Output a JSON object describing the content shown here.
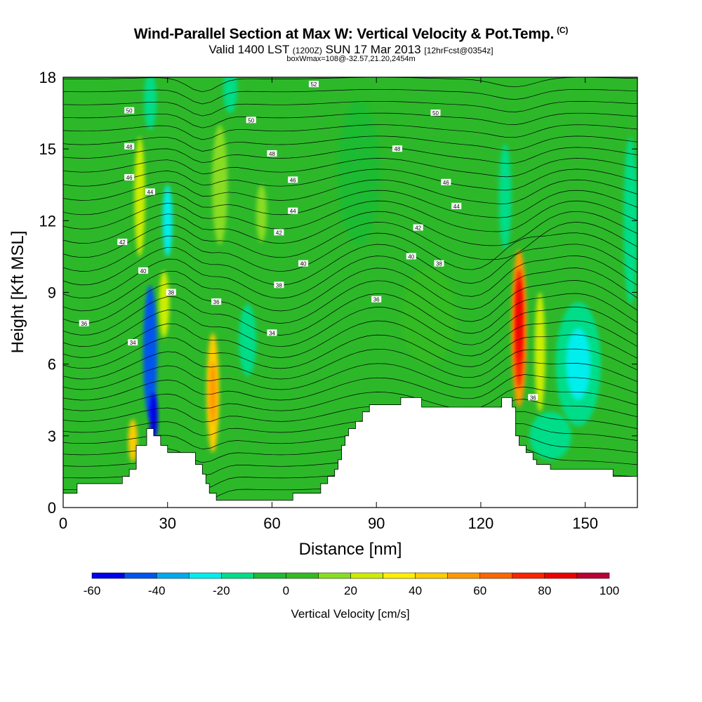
{
  "title": {
    "main": "Wind-Parallel Section at Max W: Vertical Velocity & Pot.Temp.",
    "copyright": "(C)",
    "sub_a": "Valid 1400 LST",
    "sub_b": "(1200Z)",
    "sub_c": "SUN 17 Mar 2013",
    "sub_d": "[12hrFcst@0354z]",
    "box": "boxWmax=108@-32.57,21.20,2454m"
  },
  "chart_data": {
    "type": "heatmap",
    "xlabel": "Distance [nm]",
    "ylabel": "Height [Kft MSL]",
    "xlim": [
      0,
      165
    ],
    "ylim": [
      0,
      18
    ],
    "x_ticks": [
      0,
      30,
      60,
      90,
      120,
      150
    ],
    "y_ticks": [
      0,
      3,
      6,
      9,
      12,
      15,
      18
    ],
    "background_level_color": "#2db82a",
    "colorbar": {
      "title": "Vertical Velocity [cm/s]",
      "tick_labels": [
        "-60",
        "-40",
        "-20",
        "0",
        "20",
        "40",
        "60",
        "80",
        "100"
      ],
      "bins": [
        {
          "from": -60,
          "to": -50,
          "color": "#0000ee"
        },
        {
          "from": -50,
          "to": -40,
          "color": "#0055ee"
        },
        {
          "from": -40,
          "to": -30,
          "color": "#00aaee"
        },
        {
          "from": -30,
          "to": -20,
          "color": "#00eeee"
        },
        {
          "from": -20,
          "to": -10,
          "color": "#00dd88"
        },
        {
          "from": -10,
          "to": 0,
          "color": "#1fbb33"
        },
        {
          "from": 0,
          "to": 10,
          "color": "#33bb22"
        },
        {
          "from": 10,
          "to": 20,
          "color": "#88dd22"
        },
        {
          "from": 20,
          "to": 30,
          "color": "#ccee00"
        },
        {
          "from": 30,
          "to": 40,
          "color": "#ffee00"
        },
        {
          "from": 40,
          "to": 50,
          "color": "#ffcc00"
        },
        {
          "from": 50,
          "to": 60,
          "color": "#ff9900"
        },
        {
          "from": 60,
          "to": 70,
          "color": "#ff6600"
        },
        {
          "from": 70,
          "to": 80,
          "color": "#ff2200"
        },
        {
          "from": 80,
          "to": 90,
          "color": "#ee0000"
        },
        {
          "from": 90,
          "to": 100,
          "color": "#bb0033"
        }
      ]
    },
    "terrain": [
      {
        "x": 0,
        "h": 0.6
      },
      {
        "x": 4,
        "h": 1.0
      },
      {
        "x": 15,
        "h": 1.0
      },
      {
        "x": 17,
        "h": 1.3
      },
      {
        "x": 19,
        "h": 1.6
      },
      {
        "x": 21,
        "h": 2.6
      },
      {
        "x": 24,
        "h": 3.3
      },
      {
        "x": 26,
        "h": 3.0
      },
      {
        "x": 28,
        "h": 2.6
      },
      {
        "x": 30,
        "h": 2.3
      },
      {
        "x": 35,
        "h": 2.3
      },
      {
        "x": 38,
        "h": 1.8
      },
      {
        "x": 40,
        "h": 1.4
      },
      {
        "x": 41,
        "h": 1.0
      },
      {
        "x": 42,
        "h": 0.6
      },
      {
        "x": 44,
        "h": 0.3
      },
      {
        "x": 62,
        "h": 0.3
      },
      {
        "x": 66,
        "h": 0.6
      },
      {
        "x": 72,
        "h": 0.6
      },
      {
        "x": 74,
        "h": 1.0
      },
      {
        "x": 76,
        "h": 1.3
      },
      {
        "x": 78,
        "h": 1.6
      },
      {
        "x": 79,
        "h": 2.0
      },
      {
        "x": 80,
        "h": 2.6
      },
      {
        "x": 81,
        "h": 3.0
      },
      {
        "x": 82,
        "h": 3.3
      },
      {
        "x": 84,
        "h": 3.6
      },
      {
        "x": 86,
        "h": 4.0
      },
      {
        "x": 88,
        "h": 4.3
      },
      {
        "x": 97,
        "h": 4.6
      },
      {
        "x": 103,
        "h": 4.2
      },
      {
        "x": 123,
        "h": 4.2
      },
      {
        "x": 126,
        "h": 4.6
      },
      {
        "x": 129,
        "h": 4.2
      },
      {
        "x": 130,
        "h": 3.0
      },
      {
        "x": 131,
        "h": 2.6
      },
      {
        "x": 133,
        "h": 2.3
      },
      {
        "x": 135,
        "h": 2.0
      },
      {
        "x": 136,
        "h": 1.8
      },
      {
        "x": 140,
        "h": 1.6
      },
      {
        "x": 158,
        "h": 1.3
      },
      {
        "x": 165,
        "h": 1.3
      }
    ],
    "velocity_features": [
      {
        "x": 25,
        "y": 6.5,
        "rx": 2.0,
        "ry": 2.8,
        "value": -45
      },
      {
        "x": 26,
        "y": 3.8,
        "rx": 1.2,
        "ry": 1.0,
        "value": -55
      },
      {
        "x": 29,
        "y": 8.5,
        "rx": 1.5,
        "ry": 1.4,
        "value": 25
      },
      {
        "x": 22,
        "y": 13.0,
        "rx": 1.5,
        "ry": 2.5,
        "value": 22
      },
      {
        "x": 30,
        "y": 12.0,
        "rx": 1.4,
        "ry": 1.5,
        "value": -22
      },
      {
        "x": 25,
        "y": 17.0,
        "rx": 1.8,
        "ry": 1.2,
        "value": -15
      },
      {
        "x": 20,
        "y": 2.8,
        "rx": 1.3,
        "ry": 0.9,
        "value": 42
      },
      {
        "x": 43,
        "y": 4.8,
        "rx": 1.8,
        "ry": 2.5,
        "value": 45
      },
      {
        "x": 43,
        "y": 4.8,
        "rx": 1.0,
        "ry": 1.3,
        "value": 55
      },
      {
        "x": 45,
        "y": 13.5,
        "rx": 2.2,
        "ry": 2.5,
        "value": 15
      },
      {
        "x": 57,
        "y": 12.3,
        "rx": 1.5,
        "ry": 1.2,
        "value": 15
      },
      {
        "x": 53,
        "y": 7.0,
        "rx": 2.5,
        "ry": 1.5,
        "value": -12
      },
      {
        "x": 131,
        "y": 7.5,
        "rx": 2.2,
        "ry": 3.3,
        "value": 50
      },
      {
        "x": 131,
        "y": 7.5,
        "rx": 1.4,
        "ry": 2.5,
        "value": 72
      },
      {
        "x": 131,
        "y": 7.8,
        "rx": 0.8,
        "ry": 1.7,
        "value": 88
      },
      {
        "x": 137,
        "y": 6.5,
        "rx": 1.5,
        "ry": 2.5,
        "value": 22
      },
      {
        "x": 148,
        "y": 6.0,
        "rx": 6.5,
        "ry": 2.6,
        "value": -18
      },
      {
        "x": 148,
        "y": 6.0,
        "rx": 3.5,
        "ry": 1.5,
        "value": -25
      },
      {
        "x": 140,
        "y": 3.0,
        "rx": 6.0,
        "ry": 1.0,
        "value": -12
      },
      {
        "x": 127,
        "y": 13.0,
        "rx": 1.8,
        "ry": 2.2,
        "value": -15
      },
      {
        "x": 163,
        "y": 12.0,
        "rx": 2.0,
        "ry": 3.5,
        "value": -12
      },
      {
        "x": 85,
        "y": 14.0,
        "rx": 6.0,
        "ry": 3.0,
        "value": -8
      },
      {
        "x": 105,
        "y": 8.0,
        "rx": 8.0,
        "ry": 2.0,
        "value": 8
      },
      {
        "x": 48,
        "y": 17.5,
        "rx": 2.0,
        "ry": 1.0,
        "value": -15
      }
    ],
    "contour_labels": [
      {
        "x": 72,
        "y": 17.7,
        "text": "52"
      },
      {
        "x": 19,
        "y": 16.6,
        "text": "50"
      },
      {
        "x": 54,
        "y": 16.2,
        "text": "50"
      },
      {
        "x": 107,
        "y": 16.5,
        "text": "50"
      },
      {
        "x": 19,
        "y": 15.1,
        "text": "48"
      },
      {
        "x": 60,
        "y": 14.8,
        "text": "48"
      },
      {
        "x": 96,
        "y": 15.0,
        "text": "48"
      },
      {
        "x": 19,
        "y": 13.8,
        "text": "46"
      },
      {
        "x": 66,
        "y": 13.7,
        "text": "46"
      },
      {
        "x": 110,
        "y": 13.6,
        "text": "46"
      },
      {
        "x": 25,
        "y": 13.2,
        "text": "44"
      },
      {
        "x": 66,
        "y": 12.4,
        "text": "44"
      },
      {
        "x": 113,
        "y": 12.6,
        "text": "44"
      },
      {
        "x": 17,
        "y": 11.1,
        "text": "42"
      },
      {
        "x": 62,
        "y": 11.5,
        "text": "42"
      },
      {
        "x": 102,
        "y": 11.7,
        "text": "42"
      },
      {
        "x": 23,
        "y": 9.9,
        "text": "40"
      },
      {
        "x": 69,
        "y": 10.2,
        "text": "40"
      },
      {
        "x": 100,
        "y": 10.5,
        "text": "40"
      },
      {
        "x": 31,
        "y": 9.0,
        "text": "38"
      },
      {
        "x": 62,
        "y": 9.3,
        "text": "38"
      },
      {
        "x": 108,
        "y": 10.2,
        "text": "38"
      },
      {
        "x": 6,
        "y": 7.7,
        "text": "36"
      },
      {
        "x": 44,
        "y": 8.6,
        "text": "36"
      },
      {
        "x": 90,
        "y": 8.7,
        "text": "36"
      },
      {
        "x": 20,
        "y": 6.9,
        "text": "34"
      },
      {
        "x": 60,
        "y": 7.3,
        "text": "34"
      },
      {
        "x": 135,
        "y": 4.6,
        "text": "36"
      }
    ]
  }
}
